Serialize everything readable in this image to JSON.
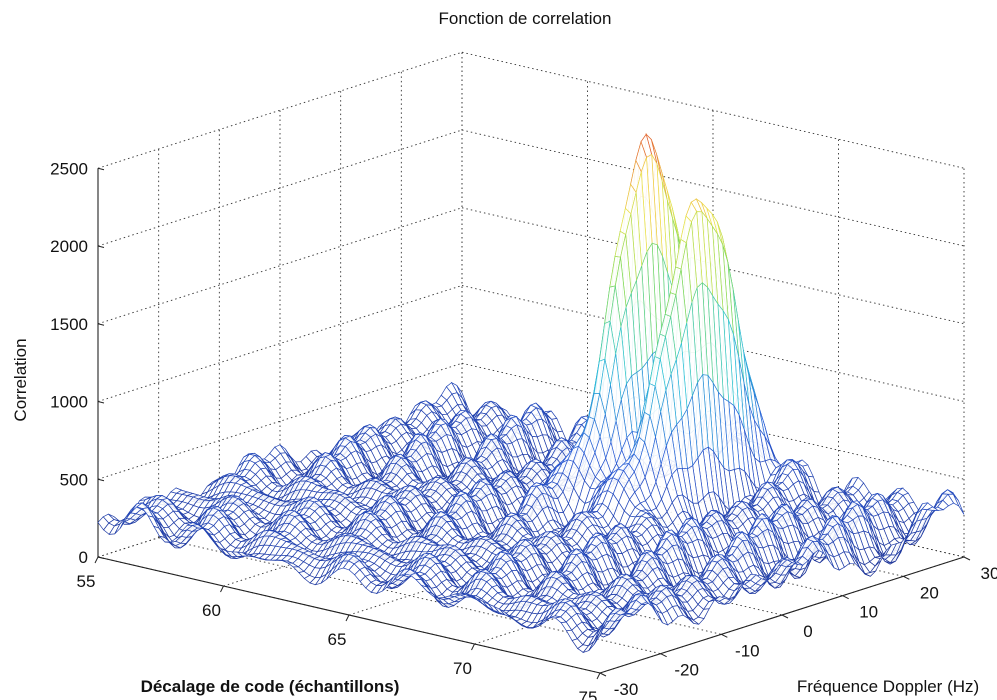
{
  "chart_data": {
    "type": "surface",
    "title": "Fonction de correlation",
    "xlabel": "Décalage de code (échantillons)",
    "ylabel": "Fréquence Doppler (Hz)",
    "zlabel": "Correlation",
    "xlim": [
      55,
      75
    ],
    "ylim": [
      -30,
      30
    ],
    "zlim": [
      0,
      2500
    ],
    "xticks": [
      55,
      60,
      65,
      70,
      75
    ],
    "yticks": [
      -30,
      -20,
      -10,
      0,
      10,
      20,
      30
    ],
    "zticks": [
      0,
      500,
      1000,
      1500,
      2000,
      2500
    ],
    "grid": true,
    "noise_floor_approx": 250,
    "peaks": [
      {
        "code_offset": 65.5,
        "doppler_hz": 17,
        "correlation": 2350
      },
      {
        "code_offset": 67.5,
        "doppler_hz": 17,
        "correlation": 2080
      }
    ],
    "colormap": [
      "#1c2f8f",
      "#2a5bd7",
      "#2fc4d9",
      "#7ed957",
      "#f2e34b",
      "#e0502a"
    ]
  }
}
